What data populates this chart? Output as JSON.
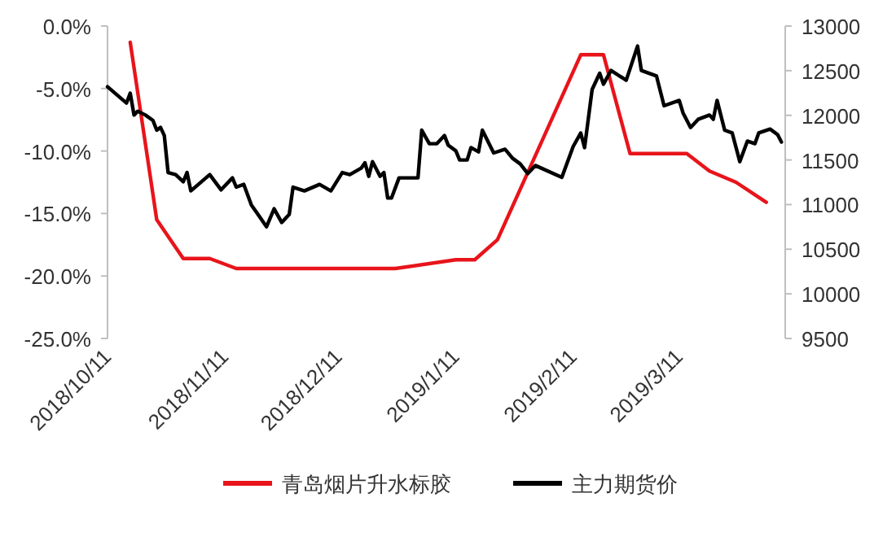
{
  "chart_data": {
    "type": "line",
    "legend": "bottom",
    "xlim": [
      "2018-10-11",
      "2019-04-08"
    ],
    "xticks": [
      {
        "value": "2018-10-11",
        "label": "2018/10/11"
      },
      {
        "value": "2018-11-11",
        "label": "2018/11/11"
      },
      {
        "value": "2018-12-11",
        "label": "2018/12/11"
      },
      {
        "value": "2019-01-11",
        "label": "2019/1/11"
      },
      {
        "value": "2019-02-11",
        "label": "2019/2/11"
      },
      {
        "value": "2019-03-11",
        "label": "2019/3/11"
      }
    ],
    "ylim": [
      -25,
      0
    ],
    "yticks": [
      {
        "value": -25,
        "label": "-25.0%"
      },
      {
        "value": -20,
        "label": "-20.0%"
      },
      {
        "value": -15,
        "label": "-15.0%"
      },
      {
        "value": -10,
        "label": "-10.0%"
      },
      {
        "value": -5,
        "label": "-5.0%"
      },
      {
        "value": 0,
        "label": "0.0%"
      }
    ],
    "y2lim": [
      9500,
      13000
    ],
    "y2ticks": [
      9500,
      10000,
      10500,
      11000,
      11500,
      12000,
      12500,
      13000
    ],
    "series": [
      {
        "name": "青岛烟片升水标胶",
        "color": "#e8141b",
        "x": [
          "2018-10-17",
          "2018-10-24",
          "2018-10-31",
          "2018-11-07",
          "2018-11-14",
          "2018-12-26",
          "2019-01-11",
          "2019-01-16",
          "2019-01-22",
          "2019-02-13",
          "2019-02-19",
          "2019-02-26",
          "2019-03-13",
          "2019-03-19",
          "2019-03-26",
          "2019-04-03"
        ],
        "values": [
          -1.3,
          -15.5,
          -18.6,
          -18.6,
          -19.4,
          -19.4,
          -18.7,
          -18.7,
          -17.1,
          -2.3,
          -2.3,
          -10.2,
          -10.2,
          -11.6,
          -12.5,
          -14.1
        ]
      },
      {
        "name": "主力期货价",
        "color": "#000000",
        "axis": "y2",
        "x": [
          "2018-10-11",
          "2018-10-16",
          "2018-10-17",
          "2018-10-18",
          "2018-10-19",
          "2018-10-21",
          "2018-10-23",
          "2018-10-24",
          "2018-10-25",
          "2018-10-26",
          "2018-10-27",
          "2018-10-29",
          "2018-10-31",
          "2018-11-01",
          "2018-11-02",
          "2018-11-04",
          "2018-11-07",
          "2018-11-10",
          "2018-11-13",
          "2018-11-14",
          "2018-11-16",
          "2018-11-18",
          "2018-11-20",
          "2018-11-22",
          "2018-11-24",
          "2018-11-26",
          "2018-11-28",
          "2018-11-29",
          "2018-12-02",
          "2018-12-06",
          "2018-12-09",
          "2018-12-12",
          "2018-12-14",
          "2018-12-17",
          "2018-12-18",
          "2018-12-19",
          "2018-12-20",
          "2018-12-22",
          "2018-12-23",
          "2018-12-24",
          "2018-12-25",
          "2018-12-27",
          "2019-01-01",
          "2019-01-02",
          "2019-01-04",
          "2019-01-06",
          "2019-01-08",
          "2019-01-09",
          "2019-01-11",
          "2019-01-12",
          "2019-01-14",
          "2019-01-15",
          "2019-01-17",
          "2019-01-18",
          "2019-01-21",
          "2019-01-24",
          "2019-01-26",
          "2019-01-28",
          "2019-01-30",
          "2019-02-01",
          "2019-02-08",
          "2019-02-11",
          "2019-02-13",
          "2019-02-14",
          "2019-02-16",
          "2019-02-18",
          "2019-02-19",
          "2019-02-21",
          "2019-02-25",
          "2019-02-28",
          "2019-03-01",
          "2019-03-05",
          "2019-03-07",
          "2019-03-11",
          "2019-03-12",
          "2019-03-14",
          "2019-03-16",
          "2019-03-19",
          "2019-03-20",
          "2019-03-21",
          "2019-03-23",
          "2019-03-25",
          "2019-03-27",
          "2019-03-29",
          "2019-03-31",
          "2019-04-01",
          "2019-04-04",
          "2019-04-06",
          "2019-04-07"
        ],
        "values": [
          12320,
          12137,
          12247,
          12003,
          12046,
          12003,
          11943,
          11833,
          11864,
          11773,
          11359,
          11335,
          11255,
          11359,
          11153,
          11226,
          11335,
          11165,
          11299,
          11195,
          11226,
          10995,
          10873,
          10752,
          10953,
          10800,
          10891,
          11195,
          11153,
          11226,
          11153,
          11359,
          11335,
          11408,
          11469,
          11317,
          11481,
          11317,
          11359,
          11073,
          11073,
          11299,
          11299,
          11833,
          11682,
          11682,
          11773,
          11664,
          11602,
          11500,
          11500,
          11638,
          11591,
          11833,
          11578,
          11620,
          11518,
          11456,
          11347,
          11438,
          11305,
          11651,
          11802,
          11638,
          12289,
          12471,
          12349,
          12502,
          12393,
          12776,
          12502,
          12440,
          12107,
          12167,
          12028,
          11864,
          11955,
          12003,
          11955,
          12167,
          11833,
          11802,
          11481,
          11711,
          11682,
          11802,
          11846,
          11784,
          11700
        ]
      }
    ]
  }
}
